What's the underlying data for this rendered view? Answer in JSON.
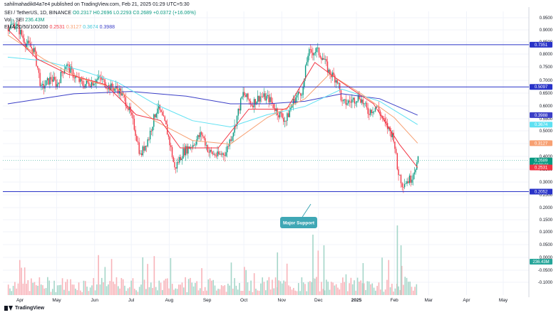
{
  "header": {
    "published": "sahilmahadik84a7e4 published on TradingView.com, Feb 21, 2025 01:29 UTC+5:30"
  },
  "legend": {
    "symbol": "SEI / TetherUS, 1D, BINANCE",
    "ohlc": "O0.2317 H0.2696 L0.2293 C0.2689 +0.0372 (+16.06%)",
    "volume_label": "Vol · SEI",
    "volume_value": "236.43M",
    "ema_label": "EMA 20/50/100/200",
    "ema20": "0.2531",
    "ema50": "0.3127",
    "ema100": "0.3674",
    "ema200": "0.3988"
  },
  "footer": {
    "brand": "TradingView"
  },
  "annotation": {
    "text": "Major Support"
  },
  "colors": {
    "up": "#089981",
    "down": "#f23645",
    "ema20": "#f23645",
    "ema50": "#f7a072",
    "ema100": "#5fe1f2",
    "ema200": "#3b3fc7",
    "hline": "#2933c8",
    "support_box": "#3fa7b5",
    "vol_up": "#a5d6c9",
    "vol_down": "#f8b3b9"
  },
  "chart_data": {
    "type": "candlestick",
    "interval": "1D",
    "y_scale": "log",
    "x_ticks": [
      "Apr",
      "May",
      "Jun",
      "Jul",
      "Aug",
      "Sep",
      "Oct",
      "Nov",
      "Dec",
      "2025",
      "Feb",
      "Mar",
      "Apr",
      "May"
    ],
    "y_ticks": [
      "0.9500",
      "0.9000",
      "0.8500",
      "0.8000",
      "0.7500",
      "0.7000",
      "0.6500",
      "0.6000",
      "0.5500",
      "0.5000",
      "0.4500",
      "0.4000",
      "0.3500",
      "0.3000",
      "0.2500",
      "0.2000",
      "0.1500",
      "0.1000",
      "0.0500",
      "0.0000",
      "-0.0500",
      "-0.1000"
    ],
    "horizontal_levels": [
      {
        "value": 0.7351,
        "label": "0.7351"
      },
      {
        "value": 0.5097,
        "label": "0.5097"
      },
      {
        "value": 0.2052,
        "label": "0.2052"
      }
    ],
    "price_tags": [
      {
        "value": 0.3988,
        "label": "0.3988",
        "color": "#3b3fc7"
      },
      {
        "value": 0.3674,
        "label": "0.3674",
        "color": "#5fe1f2"
      },
      {
        "value": 0.3127,
        "label": "0.3127",
        "color": "#f7a072"
      },
      {
        "value": 0.2689,
        "label": "0.2689",
        "sub": "04:00:01",
        "color": "#089981"
      },
      {
        "value": 0.2531,
        "label": "0.2531",
        "color": "#f23645"
      },
      {
        "value": 0.2052,
        "label": "0.2052",
        "color": "#2933c8"
      }
    ],
    "volume_tag": "236.43M",
    "close_path": [
      {
        "date": "2024-03-22",
        "close": 0.86
      },
      {
        "date": "2024-03-28",
        "close": 0.88
      },
      {
        "date": "2024-04-05",
        "close": 0.75
      },
      {
        "date": "2024-04-12",
        "close": 0.7
      },
      {
        "date": "2024-04-18",
        "close": 0.5
      },
      {
        "date": "2024-04-26",
        "close": 0.55
      },
      {
        "date": "2024-05-01",
        "close": 0.52
      },
      {
        "date": "2024-05-08",
        "close": 0.62
      },
      {
        "date": "2024-05-15",
        "close": 0.56
      },
      {
        "date": "2024-05-22",
        "close": 0.52
      },
      {
        "date": "2024-05-29",
        "close": 0.53
      },
      {
        "date": "2024-06-05",
        "close": 0.55
      },
      {
        "date": "2024-06-12",
        "close": 0.51
      },
      {
        "date": "2024-06-20",
        "close": 0.5
      },
      {
        "date": "2024-06-27",
        "close": 0.44
      },
      {
        "date": "2024-07-03",
        "close": 0.36
      },
      {
        "date": "2024-07-08",
        "close": 0.28
      },
      {
        "date": "2024-07-15",
        "close": 0.33
      },
      {
        "date": "2024-07-22",
        "close": 0.43
      },
      {
        "date": "2024-07-29",
        "close": 0.36
      },
      {
        "date": "2024-08-05",
        "close": 0.25
      },
      {
        "date": "2024-08-12",
        "close": 0.29
      },
      {
        "date": "2024-08-20",
        "close": 0.31
      },
      {
        "date": "2024-08-27",
        "close": 0.34
      },
      {
        "date": "2024-09-02",
        "close": 0.29
      },
      {
        "date": "2024-09-09",
        "close": 0.28
      },
      {
        "date": "2024-09-16",
        "close": 0.29
      },
      {
        "date": "2024-09-23",
        "close": 0.36
      },
      {
        "date": "2024-09-30",
        "close": 0.48
      },
      {
        "date": "2024-10-07",
        "close": 0.44
      },
      {
        "date": "2024-10-14",
        "close": 0.47
      },
      {
        "date": "2024-10-21",
        "close": 0.46
      },
      {
        "date": "2024-10-28",
        "close": 0.41
      },
      {
        "date": "2024-11-04",
        "close": 0.38
      },
      {
        "date": "2024-11-11",
        "close": 0.46
      },
      {
        "date": "2024-11-18",
        "close": 0.5
      },
      {
        "date": "2024-11-22",
        "close": 0.68
      },
      {
        "date": "2024-11-29",
        "close": 0.7
      },
      {
        "date": "2024-12-04",
        "close": 0.66
      },
      {
        "date": "2024-12-09",
        "close": 0.58
      },
      {
        "date": "2024-12-16",
        "close": 0.54
      },
      {
        "date": "2024-12-20",
        "close": 0.44
      },
      {
        "date": "2024-12-27",
        "close": 0.45
      },
      {
        "date": "2025-01-03",
        "close": 0.47
      },
      {
        "date": "2025-01-10",
        "close": 0.41
      },
      {
        "date": "2025-01-17",
        "close": 0.43
      },
      {
        "date": "2025-01-24",
        "close": 0.37
      },
      {
        "date": "2025-01-31",
        "close": 0.33
      },
      {
        "date": "2025-02-03",
        "close": 0.25
      },
      {
        "date": "2025-02-07",
        "close": 0.22
      },
      {
        "date": "2025-02-14",
        "close": 0.23
      },
      {
        "date": "2025-02-20",
        "close": 0.2689
      }
    ],
    "ema200_path": [
      {
        "date": "2024-03-22",
        "value": 0.44
      },
      {
        "date": "2024-05-15",
        "value": 0.48
      },
      {
        "date": "2024-07-01",
        "value": 0.49
      },
      {
        "date": "2024-08-15",
        "value": 0.47
      },
      {
        "date": "2024-09-20",
        "value": 0.44
      },
      {
        "date": "2024-10-20",
        "value": 0.44
      },
      {
        "date": "2024-11-20",
        "value": 0.45
      },
      {
        "date": "2024-12-20",
        "value": 0.48
      },
      {
        "date": "2025-01-20",
        "value": 0.46
      },
      {
        "date": "2025-02-20",
        "value": 0.3988
      }
    ],
    "ema100_path": [
      {
        "date": "2024-03-22",
        "value": 0.66
      },
      {
        "date": "2024-04-20",
        "value": 0.64
      },
      {
        "date": "2024-05-20",
        "value": 0.59
      },
      {
        "date": "2024-06-20",
        "value": 0.53
      },
      {
        "date": "2024-07-20",
        "value": 0.44
      },
      {
        "date": "2024-08-20",
        "value": 0.38
      },
      {
        "date": "2024-09-20",
        "value": 0.36
      },
      {
        "date": "2024-10-20",
        "value": 0.4
      },
      {
        "date": "2024-11-20",
        "value": 0.43
      },
      {
        "date": "2024-12-20",
        "value": 0.5
      },
      {
        "date": "2025-01-20",
        "value": 0.45
      },
      {
        "date": "2025-02-20",
        "value": 0.3674
      }
    ],
    "ema50_path": [
      {
        "date": "2024-03-22",
        "value": 0.8
      },
      {
        "date": "2024-04-20",
        "value": 0.65
      },
      {
        "date": "2024-05-20",
        "value": 0.55
      },
      {
        "date": "2024-06-20",
        "value": 0.5
      },
      {
        "date": "2024-07-20",
        "value": 0.38
      },
      {
        "date": "2024-08-20",
        "value": 0.32
      },
      {
        "date": "2024-09-20",
        "value": 0.31
      },
      {
        "date": "2024-10-20",
        "value": 0.39
      },
      {
        "date": "2024-11-20",
        "value": 0.46
      },
      {
        "date": "2024-12-10",
        "value": 0.57
      },
      {
        "date": "2025-01-05",
        "value": 0.48
      },
      {
        "date": "2025-02-01",
        "value": 0.39
      },
      {
        "date": "2025-02-20",
        "value": 0.3127
      }
    ],
    "ema20_path": [
      {
        "date": "2024-03-22",
        "value": 0.84
      },
      {
        "date": "2024-04-15",
        "value": 0.65
      },
      {
        "date": "2024-05-10",
        "value": 0.57
      },
      {
        "date": "2024-06-10",
        "value": 0.52
      },
      {
        "date": "2024-07-05",
        "value": 0.4
      },
      {
        "date": "2024-07-25",
        "value": 0.38
      },
      {
        "date": "2024-08-10",
        "value": 0.3
      },
      {
        "date": "2024-09-10",
        "value": 0.3
      },
      {
        "date": "2024-10-05",
        "value": 0.42
      },
      {
        "date": "2024-11-05",
        "value": 0.42
      },
      {
        "date": "2024-11-28",
        "value": 0.63
      },
      {
        "date": "2024-12-20",
        "value": 0.53
      },
      {
        "date": "2025-01-15",
        "value": 0.44
      },
      {
        "date": "2025-02-05",
        "value": 0.31
      },
      {
        "date": "2025-02-20",
        "value": 0.2531
      }
    ]
  }
}
